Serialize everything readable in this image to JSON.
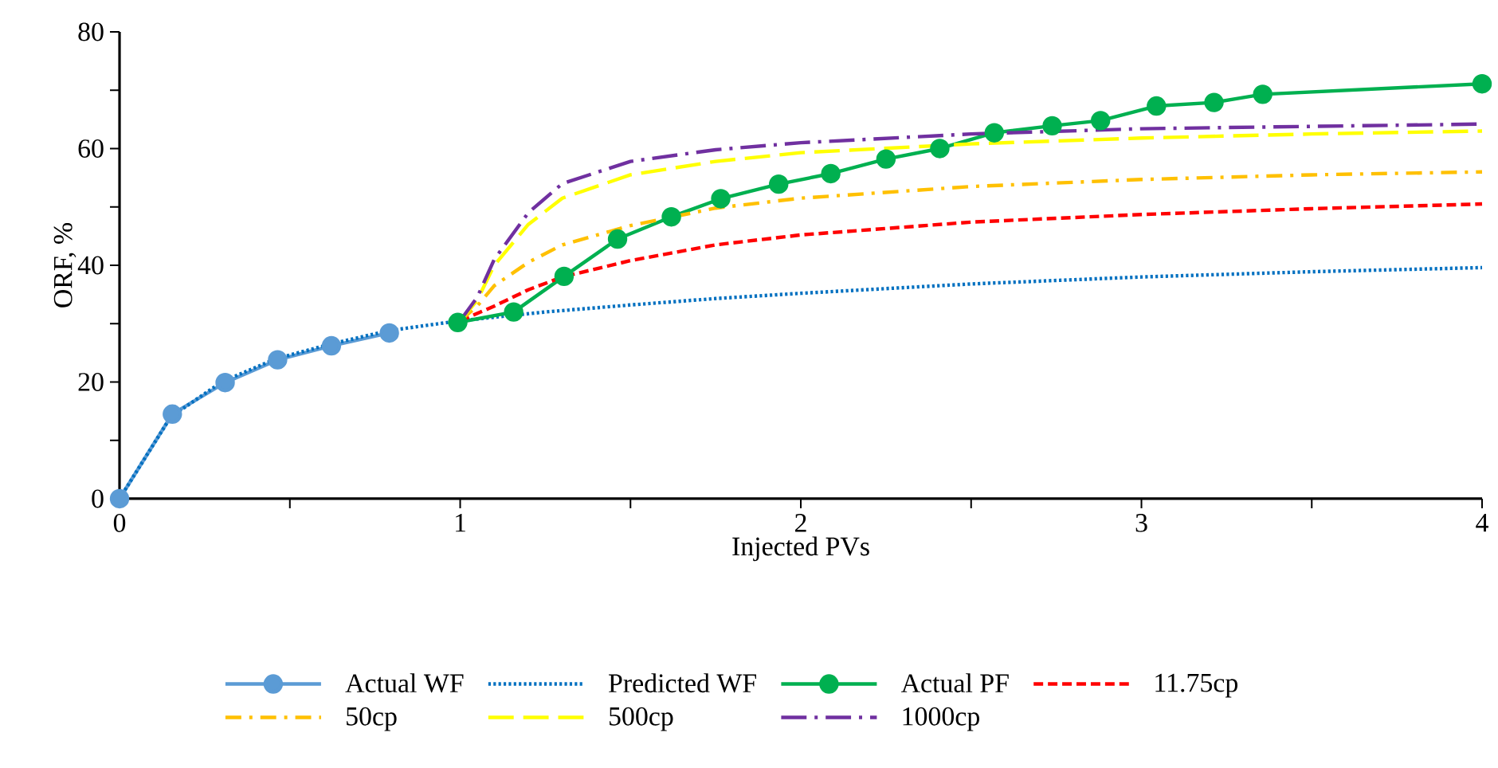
{
  "chart_data": {
    "type": "line",
    "xlabel": "Injected PVs",
    "ylabel": "ORF, %",
    "xlim": [
      0,
      4
    ],
    "ylim": [
      0,
      80
    ],
    "xticks": [
      0,
      {
        "value": 0.5,
        "label": null
      },
      1,
      {
        "value": 1.5,
        "label": null
      },
      2,
      {
        "value": 2.5,
        "label": null
      },
      3,
      {
        "value": 3.5,
        "label": null
      },
      4
    ],
    "yticks": [
      0,
      {
        "value": 10,
        "label": null
      },
      20,
      {
        "value": 30,
        "label": null
      },
      40,
      {
        "value": 50,
        "label": null
      },
      60,
      {
        "value": 70,
        "label": null
      },
      80
    ],
    "grid": false,
    "legend": "bottom",
    "series": [
      {
        "name": "Actual WF",
        "color": "#5b9bd5",
        "marker": "circle",
        "line_style": "solid",
        "x": [
          0,
          0.155,
          0.31,
          0.464,
          0.622,
          0.792
        ],
        "values": [
          0,
          14.5,
          19.9,
          23.8,
          26.2,
          28.4
        ]
      },
      {
        "name": "Predicted WF",
        "color": "#0070c0",
        "marker": "none",
        "line_style": "dotted",
        "x": [
          0,
          0.15,
          0.3,
          0.46,
          0.62,
          0.79,
          1.0,
          1.25,
          1.5,
          1.75,
          2,
          2.5,
          3,
          3.5,
          4
        ],
        "values": [
          0,
          14,
          20,
          24,
          26.5,
          28.8,
          30.5,
          32,
          33.2,
          34.3,
          35.2,
          36.8,
          38,
          38.9,
          39.6
        ]
      },
      {
        "name": "Actual PF",
        "color": "#00b050",
        "marker": "circle",
        "line_style": "solid",
        "x": [
          0.993,
          1.157,
          1.305,
          1.462,
          1.62,
          1.765,
          1.935,
          2.088,
          2.25,
          2.408,
          2.568,
          2.738,
          2.88,
          3.044,
          3.213,
          3.356,
          4.0
        ],
        "values": [
          30.2,
          32.0,
          38.1,
          44.5,
          48.3,
          51.4,
          53.9,
          55.7,
          58.2,
          60.0,
          62.7,
          63.9,
          64.8,
          67.3,
          67.9,
          69.3,
          71.1
        ]
      },
      {
        "name": "11.75cp",
        "color": "#ff0000",
        "marker": "none",
        "line_style": "dashed",
        "x": [
          1.0,
          1.1,
          1.2,
          1.3,
          1.5,
          1.75,
          2,
          2.5,
          3,
          3.5,
          4
        ],
        "values": [
          30.5,
          33,
          35.8,
          38,
          40.8,
          43.5,
          45.2,
          47.4,
          48.7,
          49.7,
          50.5
        ]
      },
      {
        "name": "50cp",
        "color": "#ffc000",
        "marker": "none",
        "line_style": "dashdot",
        "x": [
          1.0,
          1.05,
          1.1,
          1.2,
          1.3,
          1.5,
          1.75,
          2,
          2.5,
          3,
          3.5,
          4
        ],
        "values": [
          30.5,
          33,
          36.5,
          40.5,
          43.5,
          46.8,
          49.8,
          51.5,
          53.5,
          54.7,
          55.5,
          56
        ]
      },
      {
        "name": "500cp",
        "color": "#ffff00",
        "marker": "none",
        "line_style": "longdash",
        "x": [
          1.0,
          1.05,
          1.1,
          1.2,
          1.3,
          1.5,
          1.75,
          2,
          2.5,
          3,
          3.5,
          4
        ],
        "values": [
          30.5,
          34,
          40,
          47,
          51.5,
          55.5,
          57.8,
          59.3,
          60.8,
          61.8,
          62.5,
          63
        ]
      },
      {
        "name": "1000cp",
        "color": "#7030a0",
        "marker": "none",
        "line_style": "longdashdot",
        "x": [
          1.0,
          1.05,
          1.1,
          1.2,
          1.3,
          1.5,
          1.75,
          2,
          2.5,
          3,
          3.5,
          4
        ],
        "values": [
          30.5,
          34.5,
          41,
          49,
          54,
          57.8,
          59.8,
          61,
          62.5,
          63.4,
          63.8,
          64.2
        ]
      }
    ]
  }
}
